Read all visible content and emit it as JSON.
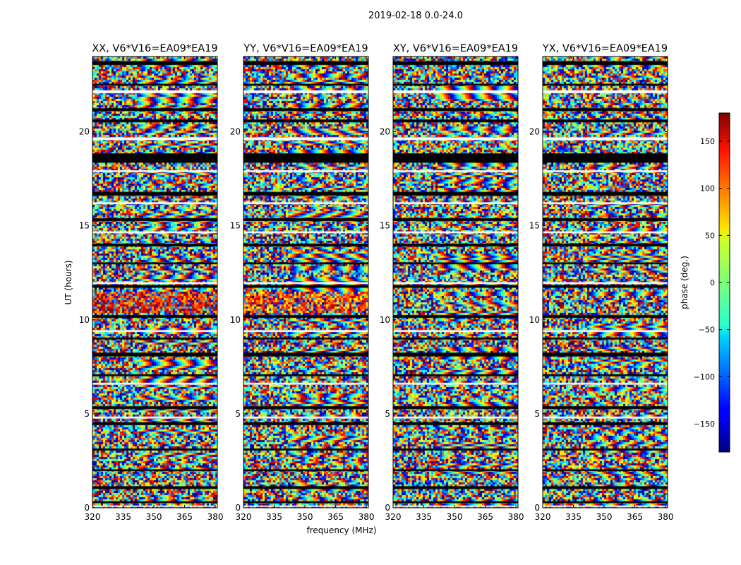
{
  "chart_data": {
    "type": "heatmap",
    "title": "2019-02-18 0.0-24.0",
    "xlabel": "frequency (MHz)",
    "ylabel": "UT (hours)",
    "xlim": [
      320,
      381
    ],
    "ylim": [
      0,
      24
    ],
    "xticks": [
      "320",
      "335",
      "350",
      "365",
      "380"
    ],
    "xtick_values": [
      320,
      335,
      350,
      365,
      380
    ],
    "yticks": [
      "0",
      "5",
      "10",
      "15",
      "20"
    ],
    "ytick_values": [
      0,
      5,
      10,
      15,
      20
    ],
    "panels": [
      {
        "title": "XX, V6*V16=EA09*EA19",
        "corr": "XX"
      },
      {
        "title": "YY, V6*V16=EA09*EA19",
        "corr": "YY"
      },
      {
        "title": "XY, V6*V16=EA09*EA19",
        "corr": "XY"
      },
      {
        "title": "YX, V6*V16=EA09*EA19",
        "corr": "YX"
      }
    ],
    "colorbar": {
      "label": "phase (deg.)",
      "range": [
        -180,
        180
      ],
      "ticks": [
        "150",
        "100",
        "50",
        "0",
        "−50",
        "−100",
        "−150"
      ],
      "tick_values": [
        150,
        100,
        50,
        0,
        -50,
        -100,
        -150
      ],
      "colormap": "jet"
    },
    "flagged_hours": [
      [
        23.55,
        23.75
      ],
      [
        22.45,
        22.55
      ],
      [
        21.1,
        21.25
      ],
      [
        20.5,
        20.65
      ],
      [
        18.35,
        18.85
      ],
      [
        16.6,
        16.8
      ],
      [
        15.25,
        15.4
      ],
      [
        13.9,
        14.05
      ],
      [
        12.95,
        13.05
      ],
      [
        11.7,
        11.85
      ],
      [
        10.1,
        10.25
      ],
      [
        8.95,
        9.05
      ],
      [
        8.05,
        8.25
      ],
      [
        7.0,
        7.1
      ],
      [
        5.25,
        5.4
      ],
      [
        4.4,
        4.55
      ],
      [
        3.05,
        3.15
      ],
      [
        1.95,
        2.05
      ],
      [
        1.0,
        1.15
      ],
      [
        0.25,
        0.35
      ]
    ],
    "blank_hours": [
      [
        22.05,
        22.2
      ],
      [
        19.55,
        19.7
      ],
      [
        17.85,
        17.95
      ],
      [
        16.15,
        16.25
      ],
      [
        14.6,
        14.7
      ],
      [
        11.9,
        12.0
      ],
      [
        9.35,
        9.45
      ],
      [
        6.55,
        6.65
      ],
      [
        4.75,
        4.85
      ],
      [
        0.05,
        0.12
      ]
    ]
  }
}
